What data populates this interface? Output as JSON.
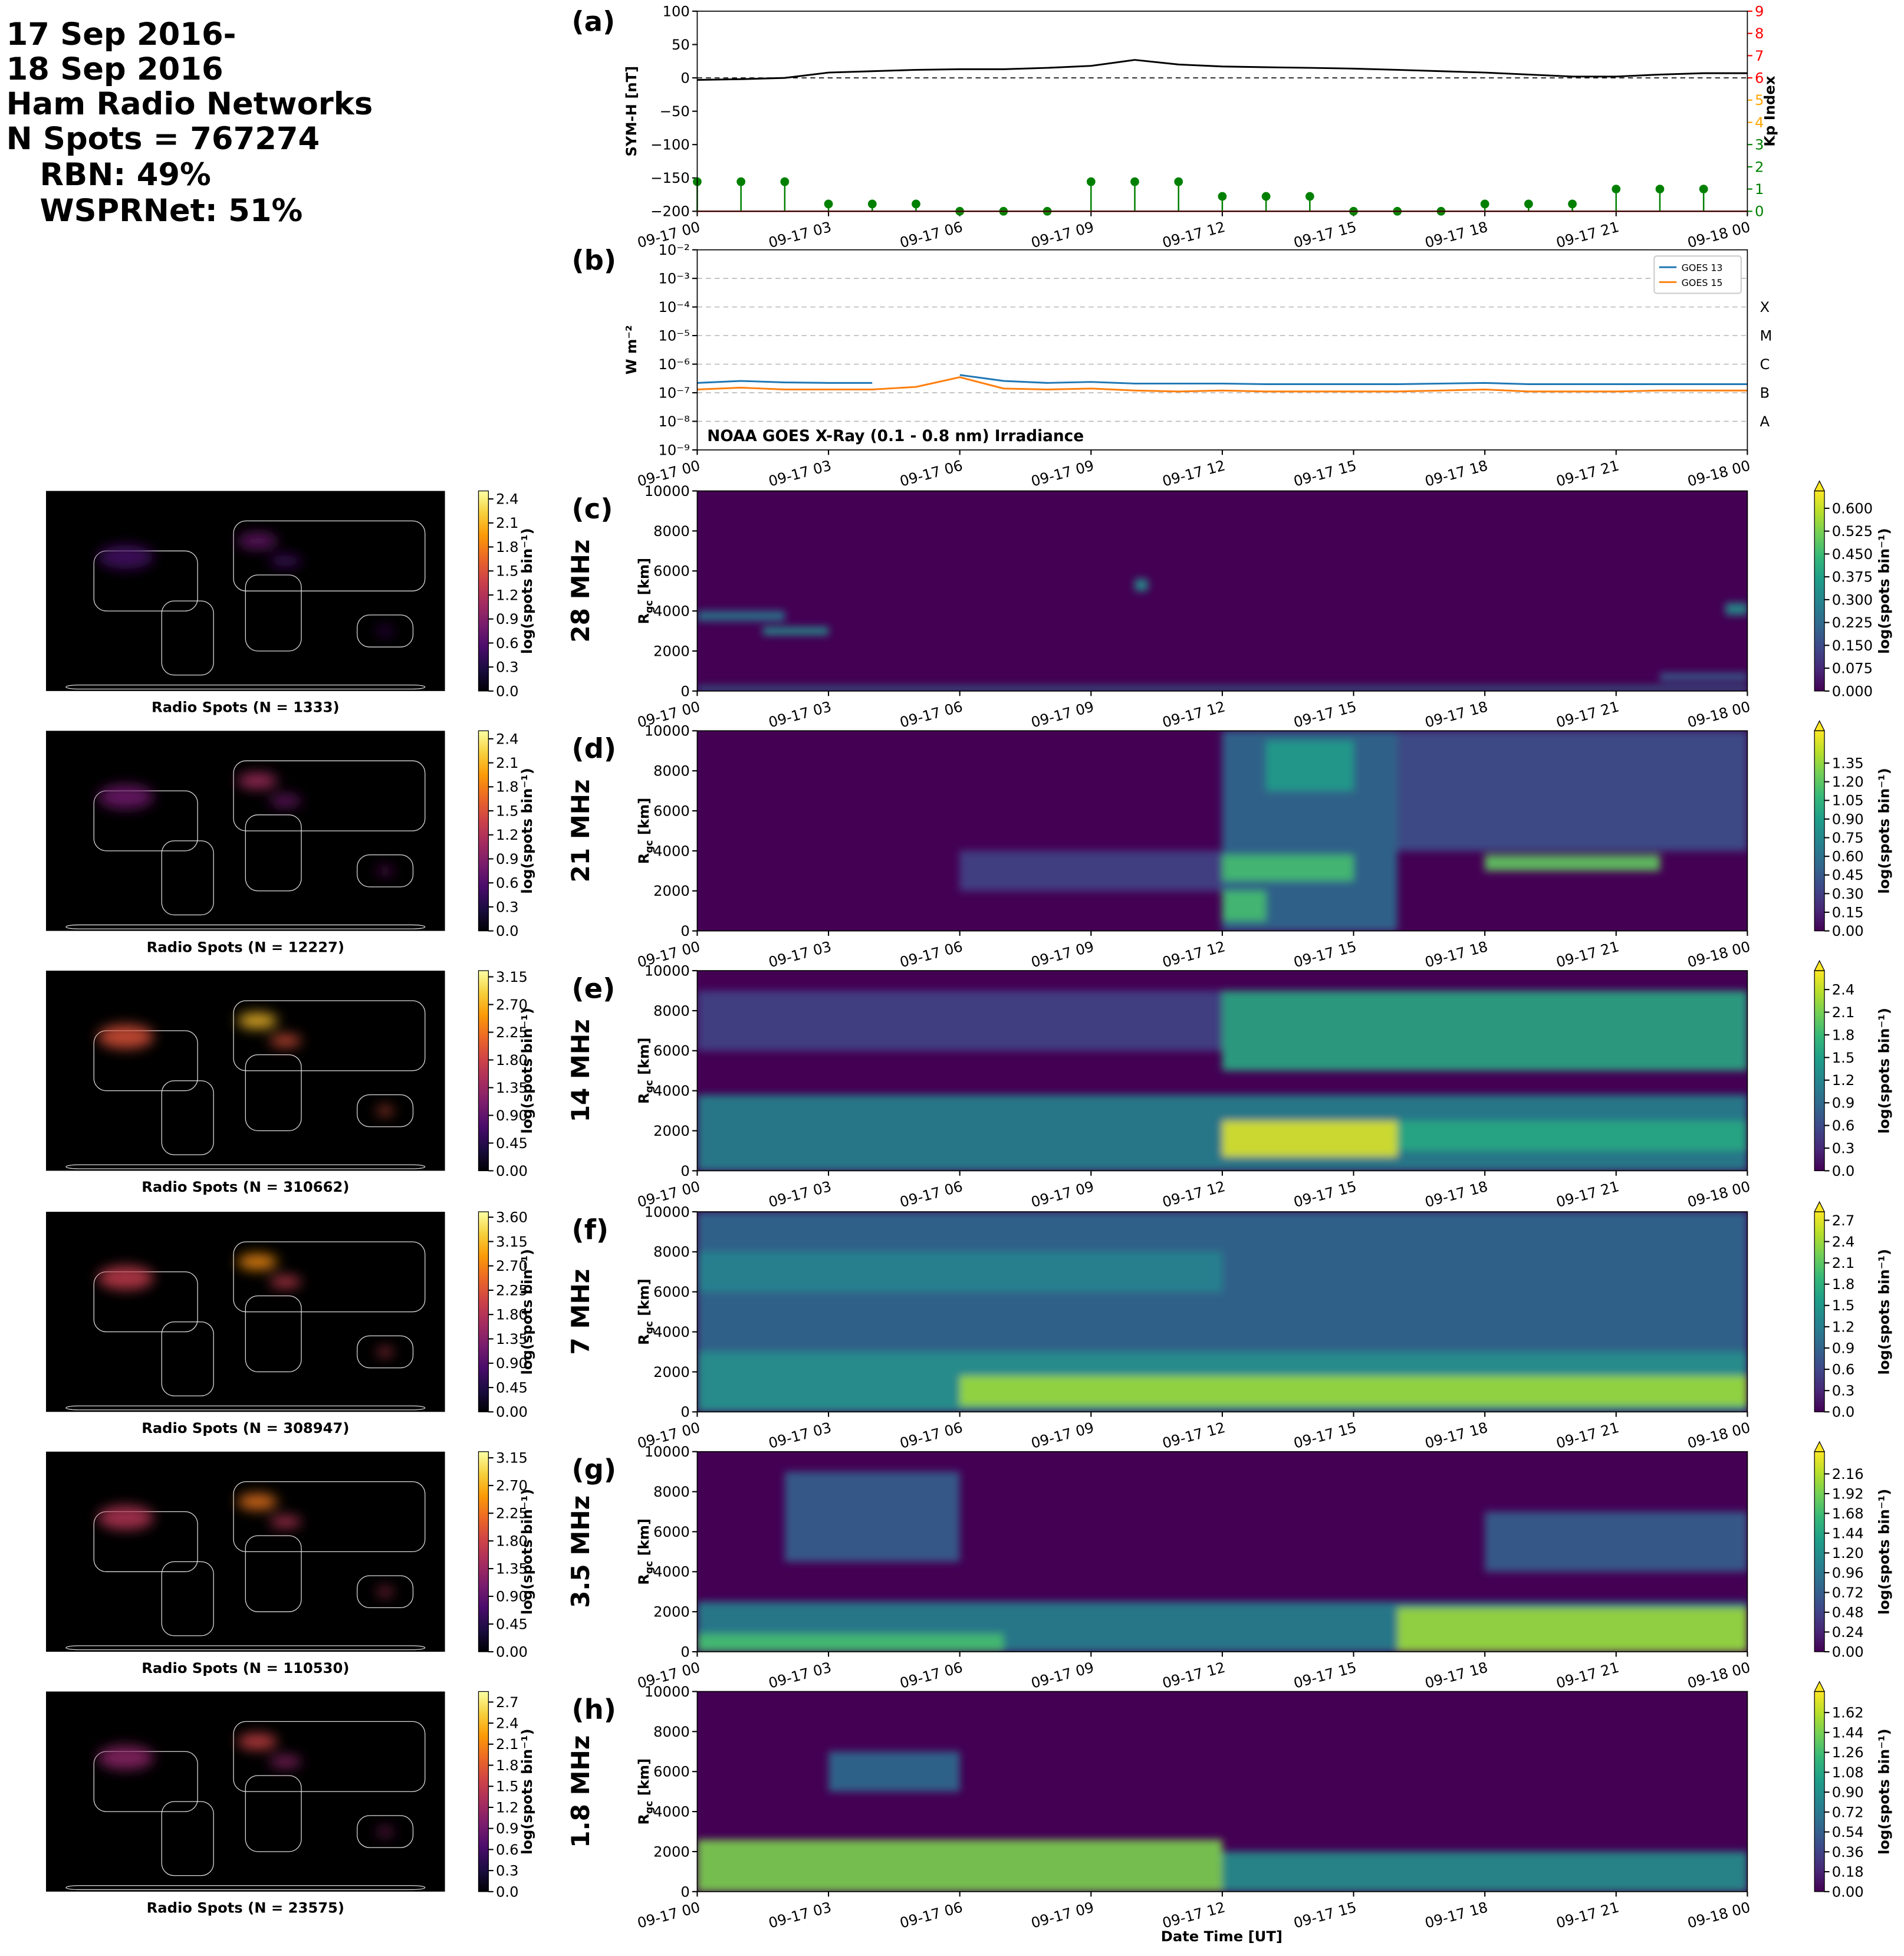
{
  "header": {
    "lines": [
      "17 Sep 2016-",
      "18 Sep 2016",
      "Ham Radio Networks",
      "N Spots = 767274",
      "RBN: 49%",
      "WSPRNet: 51%"
    ]
  },
  "xlabel": "Date Time [UT]",
  "chart_data": [
    {
      "type": "line",
      "panel": "(a)",
      "ylabel": "SYM-H [nT]",
      "y2label": "Kp Index",
      "x": [
        0,
        1,
        2,
        3,
        4,
        5,
        6,
        7,
        8,
        9,
        10,
        11,
        12,
        13,
        14,
        15,
        16,
        17,
        18,
        19,
        20,
        21,
        22,
        23,
        24
      ],
      "series": [
        {
          "color": "#000000",
          "values": [
            -3,
            -2,
            0,
            8,
            10,
            12,
            13,
            13,
            15,
            18,
            27,
            20,
            17,
            16,
            15,
            14,
            12,
            10,
            8,
            5,
            2,
            2,
            5,
            7,
            7
          ]
        },
        {
          "type": "stem",
          "axis": "y2",
          "color": "#008000",
          "x": [
            0,
            1,
            2,
            3,
            4,
            5,
            6,
            7,
            8,
            9,
            10,
            11,
            12,
            13,
            14,
            15,
            16,
            17,
            18,
            19,
            20,
            21,
            22,
            23
          ],
          "values": [
            1.33,
            1.33,
            1.33,
            0.33,
            0.33,
            0.33,
            0,
            0,
            0,
            1.33,
            1.33,
            1.33,
            0.67,
            0.67,
            0.67,
            0,
            0,
            0,
            0.33,
            0.33,
            0.33,
            1,
            1,
            1
          ]
        }
      ],
      "hline": 0,
      "ylim": [
        -200,
        100
      ],
      "yticks": [
        {
          "value": -200,
          "label": "−200"
        },
        {
          "value": -150,
          "label": "−150"
        },
        {
          "value": -100,
          "label": "−100"
        },
        {
          "value": -50,
          "label": "−50"
        },
        0,
        50,
        100
      ],
      "y2lim": [
        0,
        9
      ],
      "y2ticks": [
        0,
        1,
        2,
        3,
        4,
        5,
        6,
        7,
        8,
        9
      ],
      "y2tick_colors": [
        "#008000",
        "#008000",
        "#008000",
        "#008000",
        "#ffa500",
        "#ffa500",
        "#ff0000",
        "#ff0000",
        "#ff0000",
        "#ff0000"
      ],
      "xlim": [
        0,
        24
      ],
      "xticks": [
        {
          "value": 0,
          "label": "09-17 00"
        },
        {
          "value": 3,
          "label": "09-17 03"
        },
        {
          "value": 6,
          "label": "09-17 06"
        },
        {
          "value": 9,
          "label": "09-17 09"
        },
        {
          "value": 12,
          "label": "09-17 12"
        },
        {
          "value": 15,
          "label": "09-17 15"
        },
        {
          "value": 18,
          "label": "09-17 18"
        },
        {
          "value": 21,
          "label": "09-17 21"
        },
        {
          "value": 24,
          "label": "09-18 00"
        }
      ]
    },
    {
      "type": "line",
      "log": true,
      "grid": true,
      "legend": "upper right",
      "panel": "(b)",
      "ylabel": "W m⁻²",
      "annotation": "NOAA GOES X-Ray (0.1 - 0.8 nm) Irradiance",
      "classes": [
        {
          "label": "X",
          "value": 0.0001
        },
        {
          "label": "M",
          "value": 1e-05
        },
        {
          "label": "C",
          "value": 1e-06
        },
        {
          "label": "B",
          "value": 1e-07
        },
        {
          "label": "A",
          "value": 1e-08
        }
      ],
      "x": [
        0,
        1,
        2,
        3,
        4,
        5,
        6,
        7,
        8,
        9,
        10,
        11,
        12,
        13,
        14,
        15,
        16,
        17,
        18,
        19,
        20,
        21,
        22,
        23,
        24
      ],
      "series": [
        {
          "name": "GOES 13",
          "color": "#1f77b4",
          "values": [
            2.2e-07,
            2.6e-07,
            2.3e-07,
            2.2e-07,
            2.2e-07,
            null,
            4.2e-07,
            2.6e-07,
            2.2e-07,
            2.4e-07,
            2.1e-07,
            2.1e-07,
            2.1e-07,
            2e-07,
            2e-07,
            2e-07,
            2e-07,
            2.1e-07,
            2.2e-07,
            2e-07,
            2e-07,
            2e-07,
            2e-07,
            2e-07,
            2e-07
          ]
        },
        {
          "name": "GOES 15",
          "color": "#ff7f0e",
          "values": [
            1.3e-07,
            1.5e-07,
            1.3e-07,
            1.3e-07,
            1.3e-07,
            1.6e-07,
            3.5e-07,
            1.4e-07,
            1.3e-07,
            1.4e-07,
            1.2e-07,
            1.1e-07,
            1.2e-07,
            1.1e-07,
            1.1e-07,
            1.1e-07,
            1.1e-07,
            1.2e-07,
            1.3e-07,
            1.1e-07,
            1.1e-07,
            1.1e-07,
            1.2e-07,
            1.2e-07,
            1.2e-07
          ]
        }
      ],
      "ylim": [
        1e-09,
        0.01
      ],
      "yticks": [
        {
          "value": 1e-09,
          "label": "10⁻⁹"
        },
        {
          "value": 1e-08,
          "label": "10⁻⁸"
        },
        {
          "value": 1e-07,
          "label": "10⁻⁷"
        },
        {
          "value": 1e-06,
          "label": "10⁻⁶"
        },
        {
          "value": 1e-05,
          "label": "10⁻⁵"
        },
        {
          "value": 0.0001,
          "label": "10⁻⁴"
        },
        {
          "value": 0.001,
          "label": "10⁻³"
        },
        {
          "value": 0.01,
          "label": "10⁻²"
        }
      ],
      "xlim": [
        0,
        24
      ],
      "xticks": [
        {
          "value": 0,
          "label": "09-17 00"
        },
        {
          "value": 3,
          "label": "09-17 03"
        },
        {
          "value": 6,
          "label": "09-17 06"
        },
        {
          "value": 9,
          "label": "09-17 09"
        },
        {
          "value": 12,
          "label": "09-17 12"
        },
        {
          "value": 15,
          "label": "09-17 15"
        },
        {
          "value": 18,
          "label": "09-17 18"
        },
        {
          "value": 21,
          "label": "09-17 21"
        },
        {
          "value": 24,
          "label": "09-18 00"
        }
      ]
    },
    {
      "type": "heatmap",
      "panel": "(c)",
      "band": "28 MHz",
      "ylabel": {
        "main": "R",
        "sub": "gc",
        "unit": " [km]"
      },
      "ylim": [
        0,
        10000
      ],
      "yticks": [
        0,
        2000,
        4000,
        6000,
        8000,
        10000
      ],
      "xlim": [
        0,
        24
      ],
      "xticks": [
        {
          "value": 0,
          "label": "09-17 00"
        },
        {
          "value": 3,
          "label": "09-17 03"
        },
        {
          "value": 6,
          "label": "09-17 06"
        },
        {
          "value": 9,
          "label": "09-17 09"
        },
        {
          "value": 12,
          "label": "09-17 12"
        },
        {
          "value": 15,
          "label": "09-17 15"
        },
        {
          "value": 18,
          "label": "09-17 18"
        },
        {
          "value": 21,
          "label": "09-17 21"
        },
        {
          "value": 24,
          "label": "09-18 00"
        }
      ],
      "colormap": "viridis",
      "extend": "max",
      "clim": [
        0,
        0.657
      ],
      "clabel": "log(spots bin⁻¹)",
      "cticks": [
        {
          "value": 0,
          "label": "0.000"
        },
        0.075,
        {
          "value": 0.15,
          "label": "0.150"
        },
        0.225,
        {
          "value": 0.3,
          "label": "0.300"
        },
        0.375,
        {
          "value": 0.45,
          "label": "0.450"
        },
        0.525,
        {
          "value": 0.6,
          "label": "0.600"
        }
      ]
    },
    {
      "type": "heatmap",
      "panel": "(d)",
      "band": "21 MHz",
      "ylabel": {
        "main": "R",
        "sub": "gc",
        "unit": " [km]"
      },
      "ylim": [
        0,
        10000
      ],
      "yticks": [
        0,
        2000,
        4000,
        6000,
        8000,
        10000
      ],
      "xlim": [
        0,
        24
      ],
      "xticks": [
        {
          "value": 0,
          "label": "09-17 00"
        },
        {
          "value": 3,
          "label": "09-17 03"
        },
        {
          "value": 6,
          "label": "09-17 06"
        },
        {
          "value": 9,
          "label": "09-17 09"
        },
        {
          "value": 12,
          "label": "09-17 12"
        },
        {
          "value": 15,
          "label": "09-17 15"
        },
        {
          "value": 18,
          "label": "09-17 18"
        },
        {
          "value": 21,
          "label": "09-17 21"
        },
        {
          "value": 24,
          "label": "09-18 00"
        }
      ],
      "colormap": "viridis",
      "extend": "max",
      "clim": [
        0,
        1.61
      ],
      "clabel": "log(spots bin⁻¹)",
      "cticks": [
        {
          "value": 0,
          "label": "0.00"
        },
        0.15,
        {
          "value": 0.3,
          "label": "0.30"
        },
        0.45,
        {
          "value": 0.6,
          "label": "0.60"
        },
        0.75,
        {
          "value": 0.9,
          "label": "0.90"
        },
        1.05,
        {
          "value": 1.2,
          "label": "1.20"
        },
        1.35
      ]
    },
    {
      "type": "heatmap",
      "panel": "(e)",
      "band": "14 MHz",
      "ylabel": {
        "main": "R",
        "sub": "gc",
        "unit": " [km]"
      },
      "ylim": [
        0,
        10000
      ],
      "yticks": [
        0,
        2000,
        4000,
        6000,
        8000,
        10000
      ],
      "xlim": [
        0,
        24
      ],
      "xticks": [
        {
          "value": 0,
          "label": "09-17 00"
        },
        {
          "value": 3,
          "label": "09-17 03"
        },
        {
          "value": 6,
          "label": "09-17 06"
        },
        {
          "value": 9,
          "label": "09-17 09"
        },
        {
          "value": 12,
          "label": "09-17 12"
        },
        {
          "value": 15,
          "label": "09-17 15"
        },
        {
          "value": 18,
          "label": "09-17 18"
        },
        {
          "value": 21,
          "label": "09-17 21"
        },
        {
          "value": 24,
          "label": "09-18 00"
        }
      ],
      "colormap": "viridis",
      "extend": "max",
      "clim": [
        0,
        2.65
      ],
      "clabel": "log(spots bin⁻¹)",
      "cticks": [
        {
          "value": 0,
          "label": "0.0"
        },
        0.3,
        0.6,
        0.9,
        1.2,
        1.5,
        1.8,
        2.1,
        2.4
      ]
    },
    {
      "type": "heatmap",
      "panel": "(f)",
      "band": "7 MHz",
      "ylabel": {
        "main": "R",
        "sub": "gc",
        "unit": " [km]"
      },
      "ylim": [
        0,
        10000
      ],
      "yticks": [
        0,
        2000,
        4000,
        6000,
        8000,
        10000
      ],
      "xlim": [
        0,
        24
      ],
      "xticks": [
        {
          "value": 0,
          "label": "09-17 00"
        },
        {
          "value": 3,
          "label": "09-17 03"
        },
        {
          "value": 6,
          "label": "09-17 06"
        },
        {
          "value": 9,
          "label": "09-17 09"
        },
        {
          "value": 12,
          "label": "09-17 12"
        },
        {
          "value": 15,
          "label": "09-17 15"
        },
        {
          "value": 18,
          "label": "09-17 18"
        },
        {
          "value": 21,
          "label": "09-17 21"
        },
        {
          "value": 24,
          "label": "09-18 00"
        }
      ],
      "colormap": "viridis",
      "extend": "max",
      "clim": [
        0,
        2.82
      ],
      "clabel": "log(spots bin⁻¹)",
      "cticks": [
        {
          "value": 0,
          "label": "0.0"
        },
        0.3,
        0.6,
        0.9,
        1.2,
        1.5,
        1.8,
        2.1,
        2.4,
        2.7
      ]
    },
    {
      "type": "heatmap",
      "panel": "(g)",
      "band": "3.5 MHz",
      "ylabel": {
        "main": "R",
        "sub": "gc",
        "unit": " [km]"
      },
      "ylim": [
        0,
        10000
      ],
      "yticks": [
        0,
        2000,
        4000,
        6000,
        8000,
        10000
      ],
      "xlim": [
        0,
        24
      ],
      "xticks": [
        {
          "value": 0,
          "label": "09-17 00"
        },
        {
          "value": 3,
          "label": "09-17 03"
        },
        {
          "value": 6,
          "label": "09-17 06"
        },
        {
          "value": 9,
          "label": "09-17 09"
        },
        {
          "value": 12,
          "label": "09-17 12"
        },
        {
          "value": 15,
          "label": "09-17 15"
        },
        {
          "value": 18,
          "label": "09-17 18"
        },
        {
          "value": 21,
          "label": "09-17 21"
        },
        {
          "value": 24,
          "label": "09-18 00"
        }
      ],
      "colormap": "viridis",
      "extend": "max",
      "clim": [
        0,
        2.43
      ],
      "clabel": "log(spots bin⁻¹)",
      "cticks": [
        {
          "value": 0,
          "label": "0.00"
        },
        0.24,
        0.48,
        0.72,
        0.96,
        {
          "value": 1.2,
          "label": "1.20"
        },
        1.44,
        1.68,
        1.92,
        2.16
      ]
    },
    {
      "type": "heatmap",
      "panel": "(h)",
      "band": "1.8 MHz",
      "ylabel": {
        "main": "R",
        "sub": "gc",
        "unit": " [km]"
      },
      "ylim": [
        0,
        10000
      ],
      "yticks": [
        0,
        2000,
        4000,
        6000,
        8000,
        10000
      ],
      "xlim": [
        0,
        24
      ],
      "xticks": [
        {
          "value": 0,
          "label": "09-17 00"
        },
        {
          "value": 3,
          "label": "09-17 03"
        },
        {
          "value": 6,
          "label": "09-17 06"
        },
        {
          "value": 9,
          "label": "09-17 09"
        },
        {
          "value": 12,
          "label": "09-17 12"
        },
        {
          "value": 15,
          "label": "09-17 15"
        },
        {
          "value": 18,
          "label": "09-17 18"
        },
        {
          "value": 21,
          "label": "09-17 21"
        },
        {
          "value": 24,
          "label": "09-18 00"
        }
      ],
      "colormap": "viridis",
      "extend": "max",
      "clim": [
        0,
        1.81
      ],
      "clabel": "log(spots bin⁻¹)",
      "cticks": [
        {
          "value": 0,
          "label": "0.00"
        },
        0.18,
        0.36,
        0.54,
        0.72,
        {
          "value": 0.9,
          "label": "0.90"
        },
        1.08,
        1.26,
        1.44,
        1.62
      ]
    },
    {
      "type": "map",
      "caption": "Radio Spots (N = 1333)",
      "colormap": "inferno",
      "clim": [
        0,
        2.5
      ],
      "clabel": "log(spots bin⁻¹)",
      "cticks": [
        {
          "value": 0,
          "label": "0.0"
        },
        0.3,
        0.6,
        0.9,
        1.2,
        1.5,
        1.8,
        2.1,
        2.4
      ]
    },
    {
      "type": "map",
      "caption": "Radio Spots (N = 12227)",
      "colormap": "inferno",
      "clim": [
        0,
        2.5
      ],
      "clabel": "log(spots bin⁻¹)",
      "cticks": [
        {
          "value": 0,
          "label": "0.0"
        },
        0.3,
        0.6,
        0.9,
        1.2,
        1.5,
        1.8,
        2.1,
        2.4
      ]
    },
    {
      "type": "map",
      "caption": "Radio Spots (N = 310662)",
      "colormap": "inferno",
      "clim": [
        0,
        3.25
      ],
      "clabel": "log(spots bin⁻¹)",
      "cticks": [
        {
          "value": 0,
          "label": "0.00"
        },
        0.45,
        {
          "value": 0.9,
          "label": "0.90"
        },
        1.35,
        {
          "value": 1.8,
          "label": "1.80"
        },
        2.25,
        {
          "value": 2.7,
          "label": "2.70"
        },
        3.15
      ]
    },
    {
      "type": "map",
      "caption": "Radio Spots (N = 308947)",
      "colormap": "inferno",
      "clim": [
        0,
        3.7
      ],
      "clabel": "log(spots bin⁻¹)",
      "cticks": [
        {
          "value": 0,
          "label": "0.00"
        },
        0.45,
        {
          "value": 0.9,
          "label": "0.90"
        },
        1.35,
        {
          "value": 1.8,
          "label": "1.80"
        },
        2.25,
        {
          "value": 2.7,
          "label": "2.70"
        },
        3.15,
        {
          "value": 3.6,
          "label": "3.60"
        }
      ]
    },
    {
      "type": "map",
      "caption": "Radio Spots (N = 110530)",
      "colormap": "inferno",
      "clim": [
        0,
        3.25
      ],
      "clabel": "log(spots bin⁻¹)",
      "cticks": [
        {
          "value": 0,
          "label": "0.00"
        },
        0.45,
        {
          "value": 0.9,
          "label": "0.90"
        },
        1.35,
        {
          "value": 1.8,
          "label": "1.80"
        },
        2.25,
        {
          "value": 2.7,
          "label": "2.70"
        },
        3.15
      ]
    },
    {
      "type": "map",
      "caption": "Radio Spots (N = 23575)",
      "colormap": "inferno",
      "clim": [
        0,
        2.85
      ],
      "clabel": "log(spots bin⁻¹)",
      "cticks": [
        {
          "value": 0,
          "label": "0.0"
        },
        0.3,
        0.6,
        0.9,
        1.2,
        1.5,
        1.8,
        2.1,
        2.4,
        2.7
      ]
    }
  ]
}
